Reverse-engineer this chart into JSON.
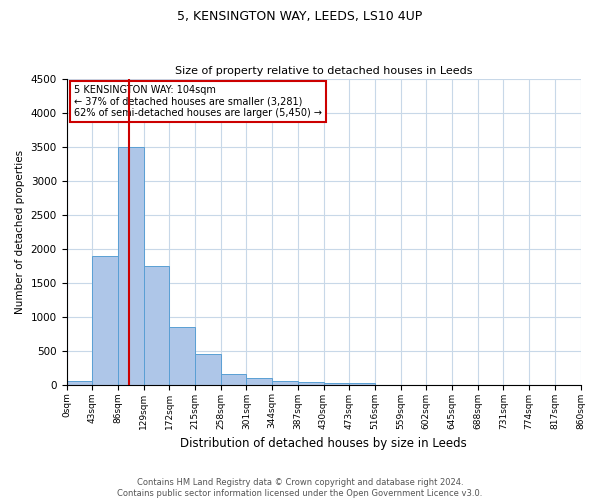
{
  "title1": "5, KENSINGTON WAY, LEEDS, LS10 4UP",
  "title2": "Size of property relative to detached houses in Leeds",
  "xlabel": "Distribution of detached houses by size in Leeds",
  "ylabel": "Number of detached properties",
  "bin_edges": [
    0,
    43,
    86,
    129,
    172,
    215,
    258,
    301,
    344,
    387,
    430,
    473,
    516,
    559,
    602,
    645,
    688,
    731,
    774,
    817,
    860
  ],
  "bar_heights": [
    50,
    1900,
    3500,
    1750,
    850,
    450,
    160,
    95,
    60,
    45,
    30,
    20,
    0,
    0,
    0,
    0,
    0,
    0,
    0,
    0
  ],
  "bar_color": "#aec6e8",
  "bar_edge_color": "#5a9fd4",
  "property_sqm": 104,
  "red_line_color": "#cc0000",
  "annotation_line1": "5 KENSINGTON WAY: 104sqm",
  "annotation_line2": "← 37% of detached houses are smaller (3,281)",
  "annotation_line3": "62% of semi-detached houses are larger (5,450) →",
  "annotation_box_color": "#cc0000",
  "ylim": [
    0,
    4500
  ],
  "yticks": [
    0,
    500,
    1000,
    1500,
    2000,
    2500,
    3000,
    3500,
    4000,
    4500
  ],
  "tick_labels": [
    "0sqm",
    "43sqm",
    "86sqm",
    "129sqm",
    "172sqm",
    "215sqm",
    "258sqm",
    "301sqm",
    "344sqm",
    "387sqm",
    "430sqm",
    "473sqm",
    "516sqm",
    "559sqm",
    "602sqm",
    "645sqm",
    "688sqm",
    "731sqm",
    "774sqm",
    "817sqm",
    "860sqm"
  ],
  "footnote1": "Contains HM Land Registry data © Crown copyright and database right 2024.",
  "footnote2": "Contains public sector information licensed under the Open Government Licence v3.0.",
  "background_color": "#ffffff",
  "grid_color": "#c8d8e8"
}
